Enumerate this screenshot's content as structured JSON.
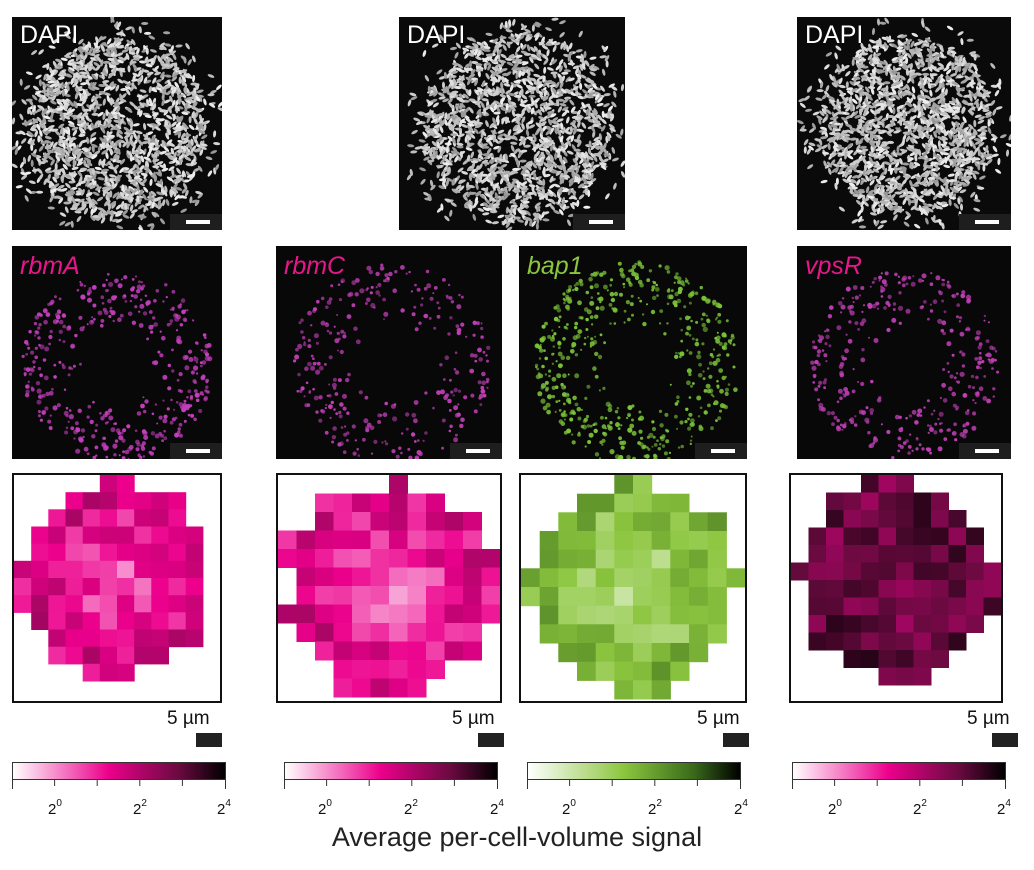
{
  "colors": {
    "magenta": "#e8168c",
    "green": "#8cc63f",
    "dark_magenta": "#2a0a1c",
    "dark_green": "#0b1a05",
    "label_magenta": "#e8168c",
    "label_green": "#8cc63f"
  },
  "dapi_panels": [
    {
      "label": "DAPI"
    },
    {
      "label": "DAPI"
    },
    {
      "label": "DAPI"
    }
  ],
  "fish_panels": [
    {
      "gene": "rbmA",
      "color": "#e8168c"
    },
    {
      "gene": "rbmC",
      "color": "#e8168c"
    },
    {
      "gene": "bap1",
      "color": "#8cc63f"
    },
    {
      "gene": "vpsR",
      "color": "#e8168c"
    }
  ],
  "heatmaps": [
    {
      "gene": "rbmA",
      "scale": "magenta"
    },
    {
      "gene": "rbmC",
      "scale": "magenta"
    },
    {
      "gene": "bap1",
      "scale": "green"
    },
    {
      "gene": "vpsR",
      "scale": "magenta"
    }
  ],
  "scale_label": "5 µm",
  "colorbar": {
    "tick_labels": [
      {
        "base": "2",
        "exp": "0"
      },
      {
        "base": "2",
        "exp": "2"
      },
      {
        "base": "2",
        "exp": "4"
      }
    ]
  },
  "axis_title": "Average per-cell-volume signal"
}
